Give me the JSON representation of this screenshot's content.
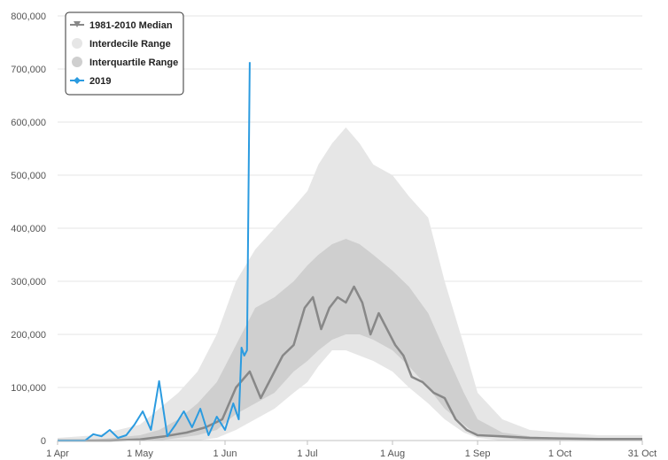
{
  "chart_data": {
    "type": "area",
    "title": "",
    "xlabel": "",
    "ylabel": "",
    "ylim": [
      0,
      800000
    ],
    "yticks": [
      "0",
      "100,000",
      "200,000",
      "300,000",
      "400,000",
      "500,000",
      "600,000",
      "700,000",
      "800,000"
    ],
    "xlim": [
      "2019-04-01",
      "2019-10-31"
    ],
    "xticks": [
      {
        "label": "1 Apr",
        "date": "2019-04-01"
      },
      {
        "label": "1 May",
        "date": "2019-05-01"
      },
      {
        "label": "1 Jun",
        "date": "2019-06-01"
      },
      {
        "label": "1 Jul",
        "date": "2019-07-01"
      },
      {
        "label": "1 Aug",
        "date": "2019-08-01"
      },
      {
        "label": "1 Sep",
        "date": "2019-09-01"
      },
      {
        "label": "1 Oct",
        "date": "2019-10-01"
      },
      {
        "label": "31 Oct",
        "date": "2019-10-31"
      }
    ],
    "grid": true,
    "legend_position": "top-left",
    "legend": [
      {
        "label": "1981-2010 Median",
        "color": "#888888",
        "marker": "line-triangle"
      },
      {
        "label": "Interdecile Range",
        "color": "#e6e6e6",
        "marker": "circle"
      },
      {
        "label": "Interquartile Range",
        "color": "#cfcfcf",
        "marker": "circle"
      },
      {
        "label": "2019",
        "color": "#2b9be0",
        "marker": "line-diamond"
      }
    ],
    "series": [
      {
        "name": "Interdecile Range",
        "kind": "band",
        "color": "#e6e6e6",
        "x": [
          "2019-04-01",
          "2019-04-15",
          "2019-05-01",
          "2019-05-08",
          "2019-05-15",
          "2019-05-22",
          "2019-05-29",
          "2019-06-05",
          "2019-06-12",
          "2019-06-19",
          "2019-06-26",
          "2019-07-01",
          "2019-07-05",
          "2019-07-10",
          "2019-07-15",
          "2019-07-20",
          "2019-07-25",
          "2019-08-01",
          "2019-08-07",
          "2019-08-14",
          "2019-08-20",
          "2019-08-27",
          "2019-09-01",
          "2019-09-10",
          "2019-09-20",
          "2019-10-01",
          "2019-10-15",
          "2019-10-31"
        ],
        "low": [
          0,
          0,
          0,
          0,
          0,
          0,
          5000,
          20000,
          40000,
          60000,
          90000,
          110000,
          140000,
          170000,
          170000,
          160000,
          150000,
          130000,
          100000,
          70000,
          40000,
          15000,
          5000,
          0,
          0,
          0,
          0,
          0
        ],
        "high": [
          5000,
          10000,
          30000,
          60000,
          90000,
          130000,
          200000,
          300000,
          360000,
          400000,
          440000,
          470000,
          520000,
          560000,
          590000,
          560000,
          520000,
          500000,
          460000,
          420000,
          300000,
          180000,
          90000,
          40000,
          20000,
          15000,
          10000,
          10000
        ]
      },
      {
        "name": "Interquartile Range",
        "kind": "band",
        "color": "#cfcfcf",
        "x": [
          "2019-04-01",
          "2019-04-15",
          "2019-05-01",
          "2019-05-08",
          "2019-05-15",
          "2019-05-22",
          "2019-05-29",
          "2019-06-05",
          "2019-06-12",
          "2019-06-19",
          "2019-06-26",
          "2019-07-01",
          "2019-07-05",
          "2019-07-10",
          "2019-07-15",
          "2019-07-20",
          "2019-07-25",
          "2019-08-01",
          "2019-08-07",
          "2019-08-14",
          "2019-08-20",
          "2019-08-27",
          "2019-09-01",
          "2019-09-10",
          "2019-09-20",
          "2019-10-01",
          "2019-10-15",
          "2019-10-31"
        ],
        "low": [
          0,
          0,
          0,
          0,
          5000,
          10000,
          20000,
          50000,
          70000,
          90000,
          130000,
          150000,
          170000,
          190000,
          200000,
          200000,
          190000,
          170000,
          140000,
          100000,
          60000,
          30000,
          10000,
          5000,
          0,
          0,
          0,
          0
        ],
        "high": [
          0,
          2000,
          10000,
          20000,
          40000,
          70000,
          110000,
          180000,
          250000,
          270000,
          300000,
          330000,
          350000,
          370000,
          380000,
          370000,
          350000,
          320000,
          290000,
          240000,
          170000,
          90000,
          40000,
          15000,
          8000,
          5000,
          5000,
          5000
        ]
      },
      {
        "name": "1981-2010 Median",
        "kind": "line",
        "color": "#888888",
        "x": [
          "2019-04-01",
          "2019-04-20",
          "2019-05-01",
          "2019-05-10",
          "2019-05-18",
          "2019-05-25",
          "2019-05-31",
          "2019-06-05",
          "2019-06-10",
          "2019-06-14",
          "2019-06-18",
          "2019-06-22",
          "2019-06-26",
          "2019-06-30",
          "2019-07-03",
          "2019-07-06",
          "2019-07-09",
          "2019-07-12",
          "2019-07-15",
          "2019-07-18",
          "2019-07-21",
          "2019-07-24",
          "2019-07-27",
          "2019-07-30",
          "2019-08-02",
          "2019-08-05",
          "2019-08-08",
          "2019-08-12",
          "2019-08-16",
          "2019-08-20",
          "2019-08-24",
          "2019-08-28",
          "2019-09-01",
          "2019-09-10",
          "2019-09-20",
          "2019-10-01",
          "2019-10-15",
          "2019-10-31"
        ],
        "values": [
          0,
          0,
          2000,
          8000,
          15000,
          25000,
          40000,
          100000,
          130000,
          80000,
          120000,
          160000,
          180000,
          250000,
          270000,
          210000,
          250000,
          270000,
          260000,
          290000,
          260000,
          200000,
          240000,
          210000,
          180000,
          160000,
          120000,
          110000,
          90000,
          80000,
          40000,
          20000,
          10000,
          8000,
          5000,
          4000,
          3000,
          3000
        ]
      },
      {
        "name": "2019",
        "kind": "line",
        "color": "#2b9be0",
        "x": [
          "2019-04-01",
          "2019-04-06",
          "2019-04-11",
          "2019-04-14",
          "2019-04-17",
          "2019-04-20",
          "2019-04-23",
          "2019-04-26",
          "2019-04-29",
          "2019-05-02",
          "2019-05-05",
          "2019-05-08",
          "2019-05-11",
          "2019-05-14",
          "2019-05-17",
          "2019-05-20",
          "2019-05-23",
          "2019-05-26",
          "2019-05-29",
          "2019-06-01",
          "2019-06-04",
          "2019-06-06",
          "2019-06-07",
          "2019-06-08",
          "2019-06-09",
          "2019-06-10"
        ],
        "values": [
          0,
          0,
          0,
          12000,
          8000,
          20000,
          5000,
          10000,
          30000,
          55000,
          20000,
          112000,
          8000,
          30000,
          55000,
          25000,
          60000,
          10000,
          45000,
          20000,
          70000,
          40000,
          175000,
          160000,
          170000,
          713000
        ]
      }
    ]
  }
}
